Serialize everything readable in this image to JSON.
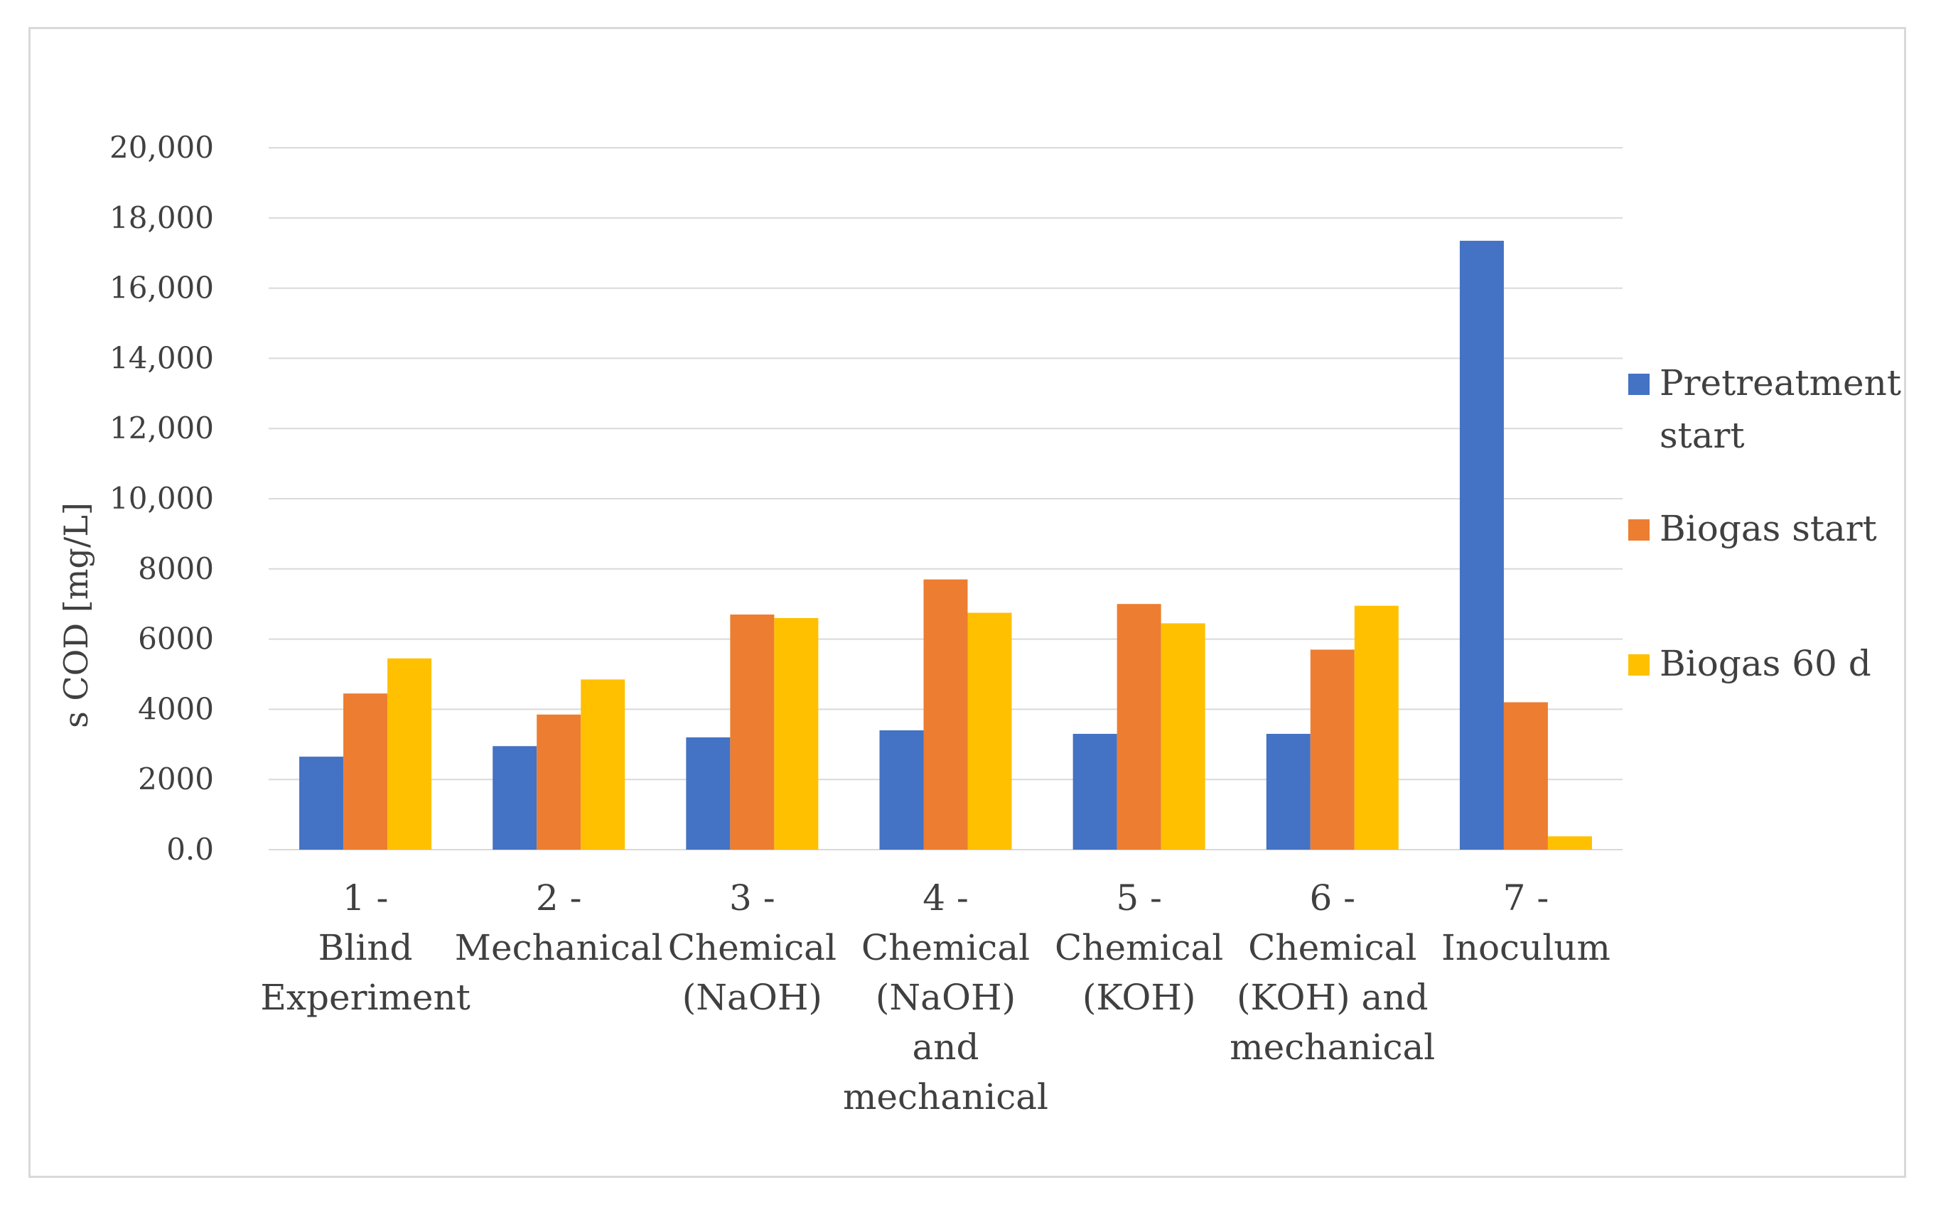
{
  "chart_data": {
    "type": "bar",
    "title": "",
    "xlabel": "",
    "ylabel": "s COD [mg/L]",
    "ylim": [
      0,
      20000
    ],
    "yticks": [
      0,
      2000,
      4000,
      6000,
      8000,
      10000,
      12000,
      14000,
      16000,
      18000,
      20000
    ],
    "ytick_labels": [
      "0.0",
      "2000",
      "4000",
      "6000",
      "8000",
      "10,000",
      "12,000",
      "14,000",
      "16,000",
      "18,000",
      "20,000"
    ],
    "grid": true,
    "legend_position": "right",
    "categories": [
      [
        "1 -",
        "Blind",
        "Experiment"
      ],
      [
        "2 -",
        "Mechanical"
      ],
      [
        "3 -",
        "Chemical",
        "(NaOH)"
      ],
      [
        "4 -",
        "Chemical",
        "(NaOH)",
        "and",
        "mechanical"
      ],
      [
        "5 -",
        "Chemical",
        "(KOH)"
      ],
      [
        "6 -",
        "Chemical",
        "(KOH) and",
        "mechanical"
      ],
      [
        "7 -",
        "Inoculum"
      ]
    ],
    "series": [
      {
        "name": "Pretreatment start",
        "legend_lines": [
          "Pretreatment",
          "start"
        ],
        "color": "#4472c4",
        "values": [
          2650,
          2950,
          3200,
          3400,
          3300,
          3300,
          17350
        ]
      },
      {
        "name": "Biogas start",
        "legend_lines": [
          "Biogas start"
        ],
        "color": "#ed7d31",
        "values": [
          4450,
          3850,
          6700,
          7700,
          7000,
          5700,
          4200
        ]
      },
      {
        "name": "Biogas 60 d",
        "legend_lines": [
          "Biogas 60 d"
        ],
        "color": "#ffc000",
        "values": [
          5450,
          4850,
          6600,
          6750,
          6450,
          6950,
          380
        ]
      }
    ]
  }
}
